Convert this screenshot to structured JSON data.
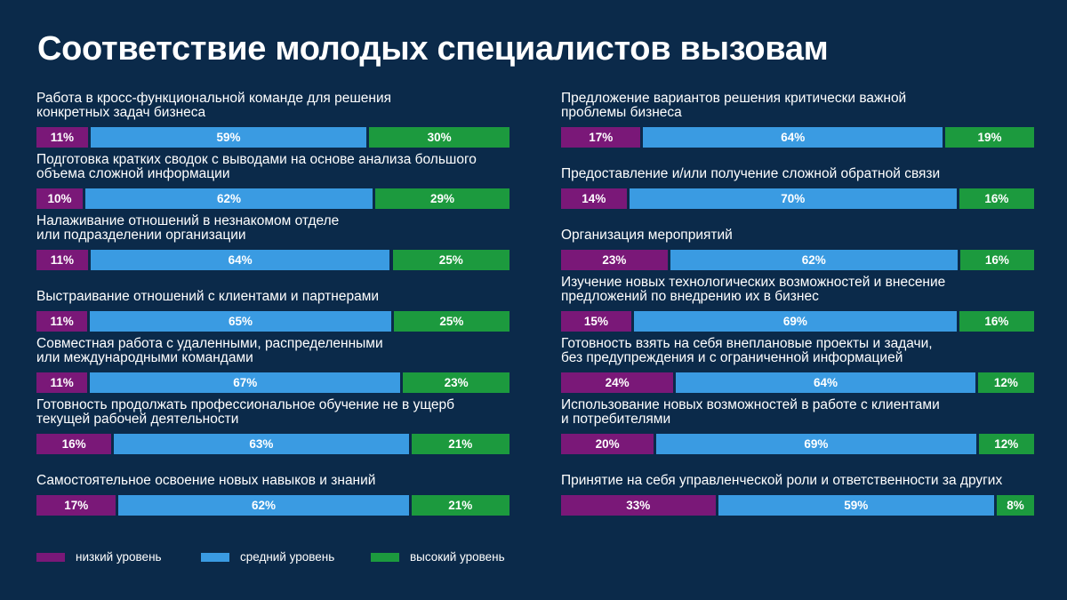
{
  "title": "Соответствие молодых специалистов вызовам",
  "colors": {
    "background": "#0b2a4a",
    "low": "#7a1878",
    "medium": "#3a9be2",
    "high": "#1c9a3e"
  },
  "legend": [
    "низкий уровень",
    "средний уровень",
    "высокий уровень"
  ],
  "chart_data": {
    "type": "bar",
    "orientation": "horizontal",
    "stacked": true,
    "title": "Соответствие молодых специалистов вызовам",
    "series_names": [
      "низкий уровень",
      "средний уровень",
      "высокий уровень"
    ],
    "columns": [
      [
        {
          "label": "Работа в кросс-функциональной команде для решения\nконкретных задач бизнеса",
          "values": [
            11,
            59,
            30
          ]
        },
        {
          "label": "Подготовка кратких сводок с выводами на основе анализа большого\nобъема сложной информации",
          "values": [
            10,
            62,
            29
          ]
        },
        {
          "label": "Налаживание отношений в незнакомом отделе\nили подразделении организации",
          "values": [
            11,
            64,
            25
          ]
        },
        {
          "label": "Выстраивание отношений с клиентами и партнерами",
          "values": [
            11,
            65,
            25
          ]
        },
        {
          "label": "Совместная работа с удаленными, распределенными\nили международными командами",
          "values": [
            11,
            67,
            23
          ]
        },
        {
          "label": "Готовность продолжать профессиональное обучение не в ущерб\nтекущей рабочей деятельности",
          "values": [
            16,
            63,
            21
          ]
        },
        {
          "label": "Самостоятельное освоение новых навыков и знаний",
          "values": [
            17,
            62,
            21
          ]
        }
      ],
      [
        {
          "label": "Предложение вариантов решения критически важной\nпроблемы бизнеса",
          "values": [
            17,
            64,
            19
          ]
        },
        {
          "label": "Предоставление и/или получение сложной обратной связи",
          "values": [
            14,
            70,
            16
          ]
        },
        {
          "label": "Организация мероприятий",
          "values": [
            23,
            62,
            16
          ]
        },
        {
          "label": "Изучение новых технологических возможностей и внесение\nпредложений по внедрению их в бизнес",
          "values": [
            15,
            69,
            16
          ]
        },
        {
          "label": "Готовность взять на себя внеплановые проекты и задачи,\nбез предупреждения и с ограниченной информацией",
          "values": [
            24,
            64,
            12
          ]
        },
        {
          "label": "Использование новых возможностей в работе с клиентами\nи потребителями",
          "values": [
            20,
            69,
            12
          ]
        },
        {
          "label": "Принятие на себя управленческой роли и ответственности за других",
          "values": [
            33,
            59,
            8
          ]
        }
      ]
    ]
  }
}
